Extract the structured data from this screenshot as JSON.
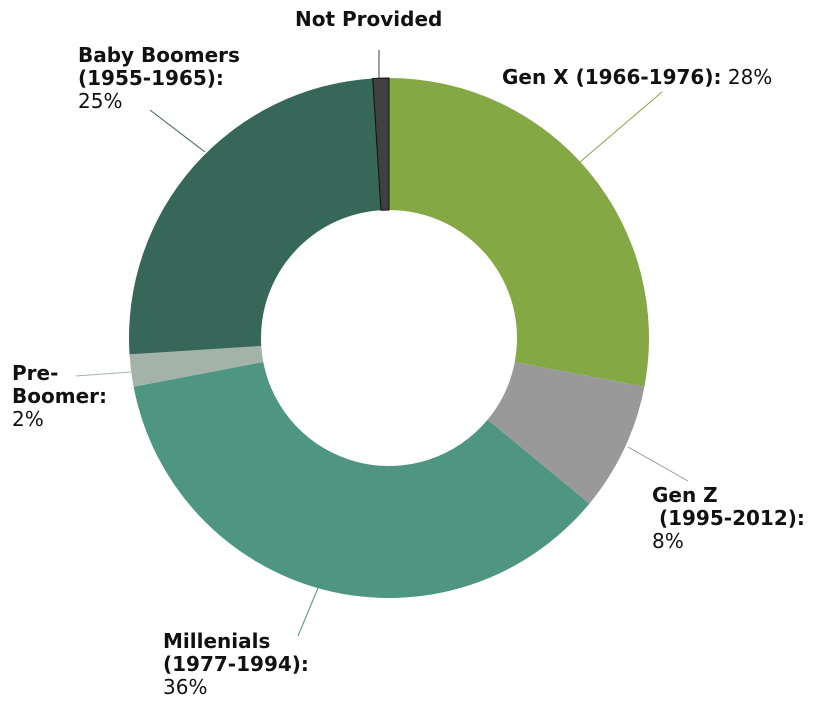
{
  "chart_data": {
    "type": "donut",
    "categories": [
      "Gen X (1966-1976):",
      "Gen Z\n (1995-2012):",
      "Millenials\n(1977-1994):",
      "Pre-\nBoomer:",
      "Baby Boomers\n(1955-1965):",
      "Not Provided"
    ],
    "values": [
      28,
      8,
      36,
      2,
      25,
      1
    ],
    "value_labels": [
      "28%",
      "8%",
      "36%",
      "2%",
      "25%",
      null
    ],
    "colors": [
      "#84a843",
      "#999999",
      "#4e9682",
      "#a4b3a8",
      "#376758",
      "#404040"
    ]
  }
}
